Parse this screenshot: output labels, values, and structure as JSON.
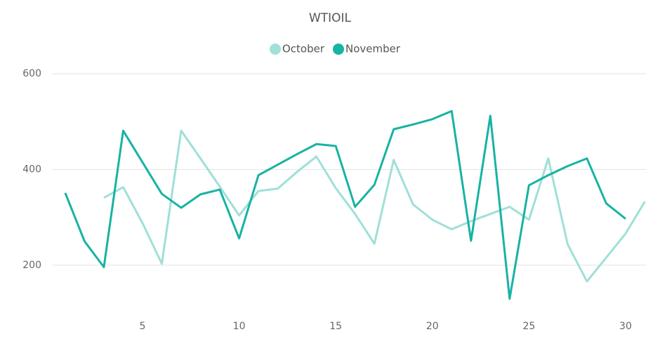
{
  "chart_data": {
    "type": "line",
    "title": "WTIOIL",
    "x": [
      1,
      2,
      3,
      4,
      5,
      6,
      7,
      8,
      9,
      10,
      11,
      12,
      13,
      14,
      15,
      16,
      17,
      18,
      19,
      20,
      21,
      22,
      23,
      24,
      25,
      26,
      27,
      28,
      29,
      30,
      31
    ],
    "series": [
      {
        "name": "October",
        "color": "#9fe0d8",
        "values": [
          null,
          null,
          341,
          363,
          288,
          203,
          481,
          423,
          364,
          304,
          355,
          360,
          395,
          427,
          361,
          307,
          245,
          420,
          327,
          295,
          275,
          292,
          307,
          322,
          295,
          423,
          244,
          166,
          216,
          266,
          333
        ]
      },
      {
        "name": "November",
        "color": "#17b3a3",
        "values": [
          351,
          250,
          196,
          481,
          415,
          349,
          320,
          348,
          358,
          256,
          388,
          410,
          432,
          453,
          449,
          322,
          368,
          484,
          494,
          505,
          522,
          251,
          512,
          130,
          367,
          388,
          407,
          423,
          329,
          297,
          null
        ]
      }
    ],
    "xlim": [
      0.35,
      31.2
    ],
    "xticks": [
      5,
      10,
      15,
      20,
      25,
      30
    ],
    "ylim": [
      100,
      600
    ],
    "yticks": [
      200,
      400,
      600
    ],
    "grid": true
  }
}
